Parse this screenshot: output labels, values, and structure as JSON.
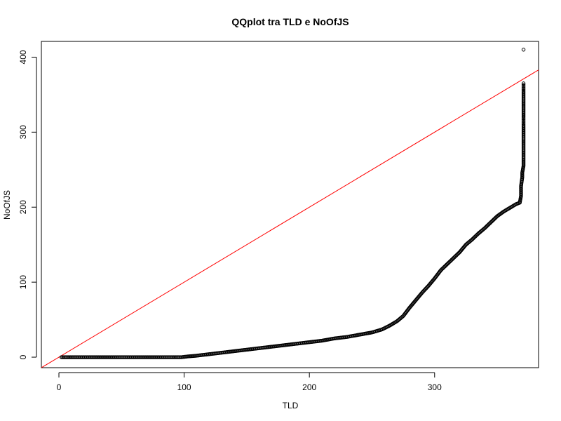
{
  "chart_data": {
    "type": "scatter",
    "title": "QQplot tra TLD e NoOfJS",
    "xlabel": "TLD",
    "ylabel": "NoOfJS",
    "xlim": [
      -14,
      383
    ],
    "ylim": [
      -14,
      421
    ],
    "x_ticks": [
      0,
      100,
      200,
      300
    ],
    "y_ticks": [
      0,
      100,
      200,
      300,
      400
    ],
    "grid": false,
    "reference_line": {
      "intercept": 0,
      "slope": 1,
      "color": "#ff0000"
    },
    "point_color": "#000000",
    "point_style": "open-circle",
    "series": [
      {
        "points": [
          [
            2,
            0
          ],
          [
            10,
            0
          ],
          [
            20,
            0
          ],
          [
            30,
            0
          ],
          [
            40,
            0
          ],
          [
            50,
            0
          ],
          [
            60,
            0
          ],
          [
            70,
            0
          ],
          [
            80,
            0
          ],
          [
            90,
            0
          ],
          [
            98,
            0
          ],
          [
            103,
            1
          ],
          [
            110,
            2
          ],
          [
            120,
            4
          ],
          [
            130,
            6
          ],
          [
            140,
            8
          ],
          [
            150,
            10
          ],
          [
            160,
            12
          ],
          [
            170,
            14
          ],
          [
            180,
            16
          ],
          [
            190,
            18
          ],
          [
            200,
            20
          ],
          [
            210,
            22
          ],
          [
            220,
            25
          ],
          [
            230,
            27
          ],
          [
            240,
            30
          ],
          [
            250,
            33
          ],
          [
            258,
            37
          ],
          [
            264,
            42
          ],
          [
            270,
            48
          ],
          [
            275,
            55
          ],
          [
            280,
            66
          ],
          [
            285,
            76
          ],
          [
            290,
            86
          ],
          [
            295,
            95
          ],
          [
            300,
            105
          ],
          [
            305,
            116
          ],
          [
            310,
            124
          ],
          [
            315,
            132
          ],
          [
            320,
            140
          ],
          [
            325,
            150
          ],
          [
            330,
            157
          ],
          [
            335,
            165
          ],
          [
            340,
            172
          ],
          [
            345,
            180
          ],
          [
            350,
            188
          ],
          [
            355,
            194
          ],
          [
            360,
            199
          ],
          [
            365,
            204
          ],
          [
            368,
            206
          ],
          [
            369,
            215
          ],
          [
            369,
            228
          ],
          [
            370,
            240
          ],
          [
            370,
            246
          ],
          [
            371,
            255
          ],
          [
            371,
            262
          ],
          [
            371,
            270
          ],
          [
            371,
            278
          ],
          [
            371,
            285
          ],
          [
            371,
            293
          ],
          [
            371,
            300
          ],
          [
            371,
            310
          ],
          [
            371,
            315
          ],
          [
            371,
            320
          ],
          [
            371,
            330
          ],
          [
            371,
            345
          ],
          [
            371,
            355
          ],
          [
            371,
            360
          ],
          [
            371,
            365
          ],
          [
            371,
            410
          ]
        ]
      }
    ]
  }
}
